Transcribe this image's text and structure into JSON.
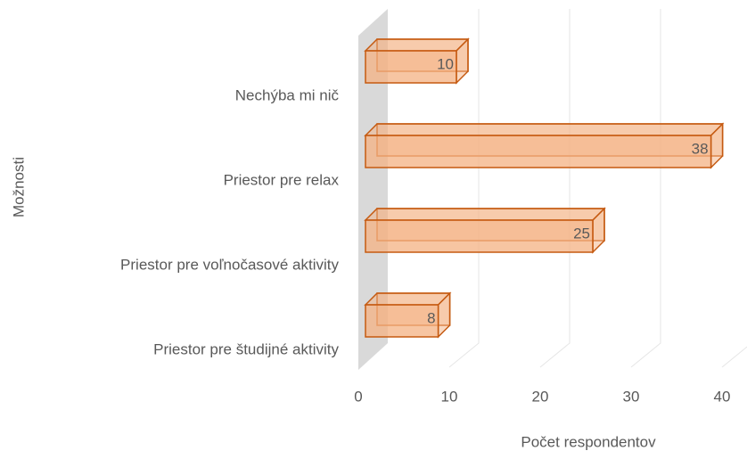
{
  "chart_data": {
    "type": "bar",
    "orientation": "horizontal",
    "categories": [
      "Nechýba mi nič",
      "Priestor pre relax",
      "Priestor pre voľnočasové aktivity",
      "Priestor pre študijné aktivity"
    ],
    "values": [
      10,
      38,
      25,
      8
    ],
    "color": "#f4b183",
    "edge_color": "#c55a11",
    "xlim": [
      0,
      40
    ],
    "xticks": [
      0,
      10,
      20,
      30,
      40
    ],
    "grid": true,
    "x_label": "Počet respondentov",
    "y_label": "Možnosti"
  }
}
